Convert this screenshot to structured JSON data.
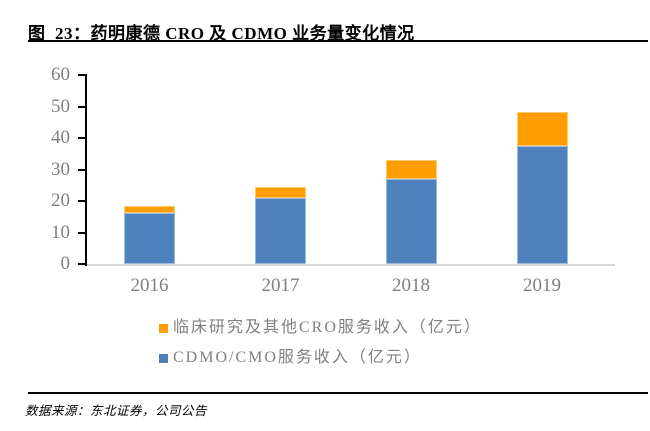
{
  "header": {
    "title": "图  23：药明康德 CRO 及 CDMO 业务量变化情况"
  },
  "footer": {
    "source": "数据来源：东北证券，公司公告"
  },
  "colors": {
    "cro_orange": "#FF9E00",
    "cdmo_blue": "#4F81BD",
    "axis_black": "#000000",
    "baseline_gray": "#D9D9D9",
    "label_gray": "#808080"
  },
  "chart_data": {
    "type": "bar",
    "stacked": true,
    "title": "图 23：药明康德 CRO 及 CDMO 业务量变化情况",
    "categories": [
      "2016",
      "2017",
      "2018",
      "2019"
    ],
    "series": [
      {
        "name": "CDMO/CMO服务收入（亿元）",
        "color_key": "cdmo_blue",
        "values": [
          16.2,
          21.0,
          27.0,
          37.5
        ]
      },
      {
        "name": "临床研究及其他CRO服务收入（亿元）",
        "color_key": "cro_orange",
        "values": [
          2.3,
          3.5,
          5.9,
          10.6
        ]
      }
    ],
    "totals": [
      18.5,
      24.5,
      32.9,
      48.1
    ],
    "legend": [
      {
        "label": "临床研究及其他CRO服务收入（亿元）",
        "color_key": "cro_orange"
      },
      {
        "label": "CDMO/CMO服务收入（亿元）",
        "color_key": "cdmo_blue"
      }
    ],
    "xlabel": "",
    "ylabel": "",
    "unit": "亿元",
    "ylim": [
      0,
      60
    ],
    "yticks": [
      0,
      10,
      20,
      30,
      40,
      50,
      60
    ],
    "grid": false,
    "legend_position": "bottom-left"
  }
}
